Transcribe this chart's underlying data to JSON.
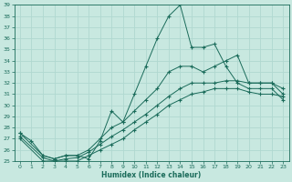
{
  "xlabel": "Humidex (Indice chaleur)",
  "ylabel": "",
  "xlim": [
    -0.5,
    23.5
  ],
  "ylim": [
    25,
    39
  ],
  "yticks": [
    25,
    26,
    27,
    28,
    29,
    30,
    31,
    32,
    33,
    34,
    35,
    36,
    37,
    38,
    39
  ],
  "xticks": [
    0,
    1,
    2,
    3,
    4,
    5,
    6,
    7,
    8,
    9,
    10,
    11,
    12,
    13,
    14,
    15,
    16,
    17,
    18,
    19,
    20,
    21,
    22,
    23
  ],
  "bg_color": "#c8e8e0",
  "line_color": "#1a6b5a",
  "grid_color": "#b0d8d0",
  "lines": [
    {
      "x": [
        0,
        1,
        2,
        3,
        4,
        5,
        6,
        7,
        8,
        9,
        10,
        11,
        12,
        13,
        14,
        15,
        16,
        17,
        18,
        19,
        20,
        21,
        22,
        23
      ],
      "y": [
        27.5,
        26.8,
        25.5,
        25.2,
        25.5,
        25.5,
        25.2,
        26.8,
        29.5,
        28.5,
        31.0,
        33.5,
        36.0,
        38.0,
        39.0,
        35.2,
        35.2,
        35.5,
        33.5,
        32.0,
        31.5,
        31.5,
        31.5,
        30.5
      ]
    },
    {
      "x": [
        0,
        2,
        3,
        4,
        5,
        6,
        7,
        8,
        9,
        10,
        11,
        12,
        13,
        14,
        15,
        16,
        17,
        18,
        19,
        20,
        21,
        22,
        23
      ],
      "y": [
        27.5,
        25.5,
        25.2,
        25.5,
        25.5,
        26.0,
        27.0,
        28.0,
        28.5,
        29.5,
        30.5,
        31.5,
        33.0,
        33.5,
        33.5,
        33.0,
        33.5,
        34.0,
        34.5,
        32.0,
        32.0,
        32.0,
        31.0
      ]
    },
    {
      "x": [
        0,
        2,
        3,
        4,
        5,
        6,
        7,
        8,
        9,
        10,
        11,
        12,
        13,
        14,
        15,
        16,
        17,
        18,
        19,
        20,
        21,
        22,
        23
      ],
      "y": [
        27.2,
        25.3,
        25.0,
        25.2,
        25.3,
        25.8,
        26.5,
        27.2,
        27.8,
        28.5,
        29.2,
        30.0,
        30.8,
        31.5,
        32.0,
        32.0,
        32.0,
        32.2,
        32.2,
        32.0,
        32.0,
        32.0,
        31.5
      ]
    },
    {
      "x": [
        0,
        2,
        3,
        4,
        5,
        6,
        7,
        8,
        9,
        10,
        11,
        12,
        13,
        14,
        15,
        16,
        17,
        18,
        19,
        20,
        21,
        22,
        23
      ],
      "y": [
        27.0,
        25.0,
        25.0,
        25.0,
        25.0,
        25.5,
        26.0,
        26.5,
        27.0,
        27.8,
        28.5,
        29.2,
        30.0,
        30.5,
        31.0,
        31.2,
        31.5,
        31.5,
        31.5,
        31.2,
        31.0,
        31.0,
        30.8
      ]
    }
  ]
}
